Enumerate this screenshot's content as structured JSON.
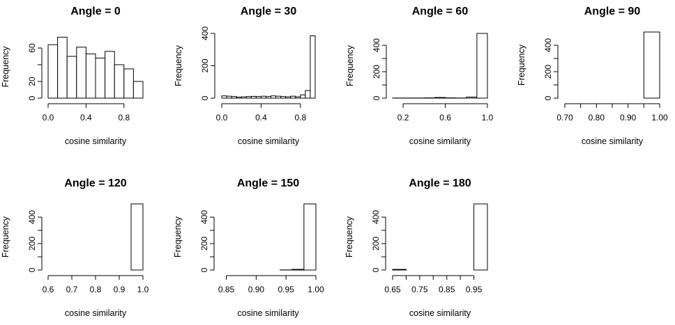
{
  "chart_data": [
    {
      "type": "bar",
      "title": "Angle = 0",
      "xlabel": "cosine similarity",
      "ylabel": "Frequency",
      "bin_edges": [
        0.0,
        0.1,
        0.2,
        0.3,
        0.4,
        0.5,
        0.6,
        0.7,
        0.8,
        0.9,
        1.0
      ],
      "values": [
        64,
        73,
        50,
        61,
        53,
        48,
        56,
        40,
        35,
        20
      ],
      "xticks": [
        0.0,
        0.4,
        0.8
      ],
      "xtick_labels": [
        "0.0",
        "0.4",
        "0.8"
      ],
      "yticks": [
        0,
        20,
        40,
        60
      ],
      "ytick_labels": [
        "0",
        "20",
        "",
        "60"
      ],
      "xlim": [
        0.0,
        1.0
      ],
      "ylim": [
        0,
        75
      ]
    },
    {
      "type": "bar",
      "title": "Angle = 30",
      "xlabel": "cosine similarity",
      "ylabel": "Frequency",
      "bin_edges": [
        0.0,
        0.05,
        0.1,
        0.15,
        0.2,
        0.25,
        0.3,
        0.35,
        0.4,
        0.45,
        0.5,
        0.55,
        0.6,
        0.65,
        0.7,
        0.75,
        0.8,
        0.85,
        0.9,
        0.95
      ],
      "values": [
        14,
        12,
        10,
        6,
        8,
        10,
        11,
        10,
        12,
        10,
        14,
        12,
        10,
        8,
        12,
        8,
        20,
        47,
        385
      ],
      "xticks": [
        0.0,
        0.4,
        0.8
      ],
      "xtick_labels": [
        "0.0",
        "0.4",
        "0.8"
      ],
      "yticks": [
        0,
        200,
        400
      ],
      "ytick_labels": [
        "0",
        "200",
        "400"
      ],
      "xlim": [
        0.0,
        0.95
      ],
      "ylim": [
        0,
        400
      ]
    },
    {
      "type": "bar",
      "title": "Angle = 60",
      "xlabel": "cosine similarity",
      "ylabel": "Frequency",
      "bin_edges": [
        0.1,
        0.2,
        0.3,
        0.4,
        0.5,
        0.6,
        0.7,
        0.8,
        0.9,
        1.0
      ],
      "values": [
        1,
        1,
        1,
        2,
        5,
        2,
        1,
        8,
        490
      ],
      "xticks": [
        0.2,
        0.6,
        1.0
      ],
      "xtick_labels": [
        "0.2",
        "0.6",
        "1.0"
      ],
      "yticks": [
        0,
        100,
        200,
        300,
        400
      ],
      "ytick_labels": [
        "0",
        "",
        "200",
        "",
        "400"
      ],
      "xlim": [
        0.1,
        1.0
      ],
      "ylim": [
        0,
        490
      ]
    },
    {
      "type": "bar",
      "title": "Angle = 90",
      "xlabel": "cosine similarity",
      "ylabel": "Frequency",
      "bin_edges": [
        0.7,
        0.75,
        0.8,
        0.85,
        0.9,
        0.95,
        1.0
      ],
      "values": [
        0,
        0,
        0,
        0,
        0,
        500
      ],
      "xticks": [
        0.7,
        0.75,
        0.8,
        0.85,
        0.9,
        0.95,
        1.0
      ],
      "xtick_labels": [
        "0.70",
        "",
        "0.80",
        "",
        "0.90",
        "",
        "1.00"
      ],
      "yticks": [
        0,
        100,
        200,
        300,
        400
      ],
      "ytick_labels": [
        "0",
        "",
        "200",
        "",
        "400"
      ],
      "xlim": [
        0.7,
        1.0
      ],
      "ylim": [
        0,
        500
      ]
    },
    {
      "type": "bar",
      "title": "Angle = 120",
      "xlabel": "cosine similarity",
      "ylabel": "Frequency",
      "bin_edges": [
        0.6,
        0.65,
        0.7,
        0.75,
        0.8,
        0.85,
        0.9,
        0.95,
        1.0
      ],
      "values": [
        0,
        0,
        0,
        0,
        0,
        0,
        0,
        500
      ],
      "xticks": [
        0.6,
        0.7,
        0.8,
        0.9,
        1.0
      ],
      "xtick_labels": [
        "0.6",
        "0.7",
        "0.8",
        "0.9",
        "1.0"
      ],
      "yticks": [
        0,
        100,
        200,
        300,
        400
      ],
      "ytick_labels": [
        "0",
        "",
        "200",
        "",
        "400"
      ],
      "xlim": [
        0.6,
        1.0
      ],
      "ylim": [
        0,
        500
      ]
    },
    {
      "type": "bar",
      "title": "Angle = 150",
      "xlabel": "cosine similarity",
      "ylabel": "Frequency",
      "bin_edges": [
        0.84,
        0.86,
        0.88,
        0.9,
        0.92,
        0.94,
        0.96,
        0.98,
        1.0
      ],
      "values": [
        0,
        0,
        0,
        0,
        0,
        1,
        5,
        500
      ],
      "xticks": [
        0.85,
        0.9,
        0.95,
        1.0
      ],
      "xtick_labels": [
        "0.85",
        "0.90",
        "0.95",
        "1.00"
      ],
      "yticks": [
        0,
        100,
        200,
        300,
        400
      ],
      "ytick_labels": [
        "0",
        "",
        "200",
        "",
        "400"
      ],
      "xlim": [
        0.84,
        1.0
      ],
      "ylim": [
        0,
        500
      ]
    },
    {
      "type": "bar",
      "title": "Angle = 180",
      "xlabel": "cosine similarity",
      "ylabel": "Frequency",
      "bin_edges": [
        0.65,
        0.7,
        0.75,
        0.8,
        0.85,
        0.9,
        0.95,
        1.0
      ],
      "values": [
        5,
        0,
        0,
        0,
        0,
        0,
        500
      ],
      "xticks": [
        0.65,
        0.7,
        0.75,
        0.8,
        0.85,
        0.9,
        0.95
      ],
      "xtick_labels": [
        "0.65",
        "",
        "0.75",
        "",
        "0.85",
        "",
        "0.95"
      ],
      "yticks": [
        0,
        100,
        200,
        300,
        400
      ],
      "ytick_labels": [
        "0",
        "",
        "200",
        "",
        "400"
      ],
      "xlim": [
        0.65,
        1.0
      ],
      "ylim": [
        0,
        500
      ]
    }
  ]
}
